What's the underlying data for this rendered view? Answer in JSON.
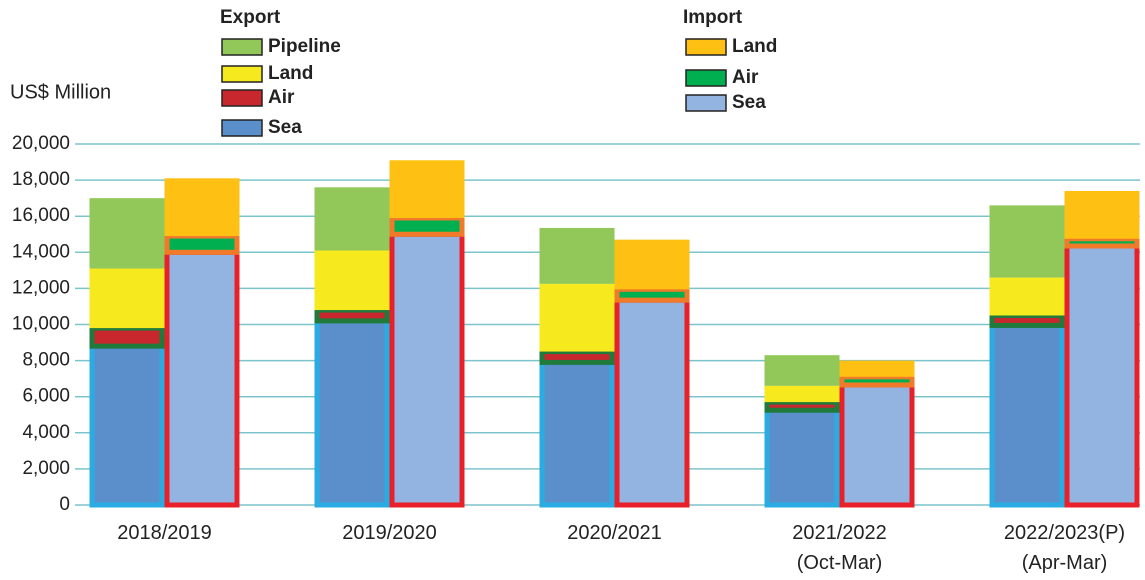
{
  "chart_data": {
    "type": "bar",
    "stacked": true,
    "y_label": "US$ Million",
    "categories": [
      "2018/2019",
      "2019/2020",
      "2020/2021",
      "2021/2022\n(Oct-Mar)",
      "2022/2023(P)\n(Apr-Mar)"
    ],
    "ylim": [
      0,
      20000
    ],
    "yticks": [
      0,
      {
        "value": 2000,
        "label": "2,000"
      },
      {
        "value": 4000,
        "label": "4,000"
      },
      {
        "value": 6000,
        "label": "6,000"
      },
      {
        "value": 8000,
        "label": "8,000"
      },
      {
        "value": 10000,
        "label": "10,000"
      },
      {
        "value": 12000,
        "label": "12,000"
      },
      {
        "value": 14000,
        "label": "14,000"
      },
      {
        "value": 16000,
        "label": "16,000"
      },
      {
        "value": 18000,
        "label": "18,000"
      },
      {
        "value": 20000,
        "label": "20,000"
      }
    ],
    "grid": true,
    "stacks": [
      {
        "name": "Export",
        "series": [
          {
            "name": "Pipeline",
            "color": "#92c85a",
            "values": [
              3900,
              3500,
              3100,
              1700,
              4000
            ]
          },
          {
            "name": "Land",
            "color": "#f6e91d",
            "values": [
              3300,
              3300,
              3750,
              900,
              2100
            ]
          },
          {
            "name": "Air",
            "color": "#c8282d",
            "edgecolor": "#1f7a3c",
            "values": [
              1000,
              600,
              600,
              450,
              550
            ]
          },
          {
            "name": "Sea",
            "color": "#5b8fcb",
            "edgecolor": "#2aace2",
            "values": [
              8800,
              10200,
              7900,
              5250,
              9950
            ]
          }
        ]
      },
      {
        "name": "Import",
        "series": [
          {
            "name": "Land",
            "color": "#fec012",
            "values": [
              3200,
              3200,
              2750,
              900,
              2650
            ]
          },
          {
            "name": "Air",
            "color": "#00b050",
            "edgecolor": "#f07a2a",
            "values": [
              900,
              900,
              600,
              450,
              400
            ]
          },
          {
            "name": "Sea",
            "color": "#93b3e0",
            "edgecolor": "#e8202a",
            "values": [
              14000,
              15000,
              11350,
              6650,
              14350
            ]
          }
        ]
      }
    ]
  }
}
